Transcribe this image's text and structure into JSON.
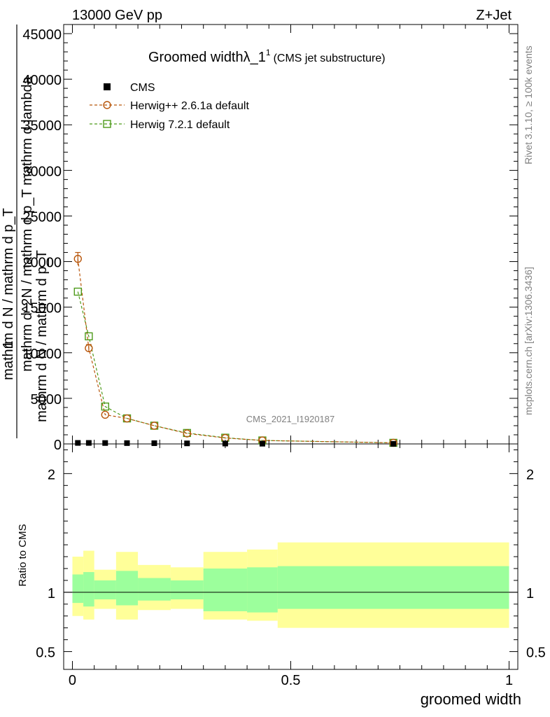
{
  "header": {
    "left": "13000 GeV pp",
    "right": "Z+Jet"
  },
  "side_labels": {
    "rivet": "Rivet 3.1.10, ≥ 100k events",
    "mcplots": "mcplots.cern.ch [arXiv:1306.3436]"
  },
  "watermark": "CMS_2021_I1920187",
  "chart_data": {
    "type": "line",
    "title": "Groomed widthλ_1",
    "title_sup": "1",
    "subtitle": "(CMS jet substructure)",
    "xlabel": "groomed width",
    "ylabel_main": {
      "numerator": "1",
      "denominator": "mathrm d N / mathrm d p_T",
      "expression": "mathrm d^2N / mathrm d p_T mathrm d lambda",
      "side": "mathrm d N / mathrm d p_T"
    },
    "ylabel_ratio": "Ratio to CMS",
    "xlim": [
      -0.02,
      1.02
    ],
    "ylim": [
      0,
      46000
    ],
    "ratio_ylim": [
      0.35,
      2.25
    ],
    "x_ticks": [
      0,
      0.5,
      1
    ],
    "x_tick_labels": [
      "0",
      "0.5",
      "1"
    ],
    "y_ticks": [
      0,
      5000,
      10000,
      15000,
      20000,
      25000,
      30000,
      35000,
      40000,
      45000
    ],
    "y_tick_labels": [
      "0",
      "5000",
      "10000",
      "15000",
      "20000",
      "25000",
      "30000",
      "35000",
      "40000",
      "45000"
    ],
    "ratio_ticks": [
      0.5,
      1,
      2
    ],
    "ratio_tick_labels": [
      "0.5",
      "1",
      "2"
    ],
    "legend": [
      {
        "name": "CMS",
        "marker": "square-filled",
        "color": "#000000"
      },
      {
        "name": "Herwig++ 2.6.1a default",
        "marker": "circle-open",
        "color": "#b8560b"
      },
      {
        "name": "Herwig 7.2.1 default",
        "marker": "square-open",
        "color": "#4d9a1a"
      }
    ],
    "bins": [
      [
        0,
        0.025
      ],
      [
        0.025,
        0.05
      ],
      [
        0.05,
        0.1
      ],
      [
        0.1,
        0.15
      ],
      [
        0.15,
        0.225
      ],
      [
        0.225,
        0.3
      ],
      [
        0.3,
        0.4
      ],
      [
        0.4,
        0.47
      ],
      [
        0.47,
        1.0
      ]
    ],
    "series": [
      {
        "name": "CMS",
        "x": [
          0.0125,
          0.0375,
          0.075,
          0.125,
          0.1875,
          0.2625,
          0.35,
          0.435,
          0.735
        ],
        "values": [
          110,
          110,
          100,
          90,
          80,
          60,
          40,
          25,
          8
        ]
      },
      {
        "name": "Herwig++ 2.6.1a default",
        "x": [
          0.0125,
          0.0375,
          0.075,
          0.125,
          0.1875,
          0.2625,
          0.35,
          0.435,
          0.735
        ],
        "values": [
          20300,
          10500,
          3200,
          2800,
          2000,
          1150,
          650,
          380,
          120
        ],
        "errors": [
          700,
          400,
          0,
          0,
          0,
          0,
          0,
          0,
          0
        ]
      },
      {
        "name": "Herwig 7.2.1 default",
        "x": [
          0.0125,
          0.0375,
          0.075,
          0.125,
          0.1875,
          0.2625,
          0.35,
          0.435,
          0.735
        ],
        "values": [
          16700,
          11800,
          4100,
          2800,
          2000,
          1200,
          680,
          380,
          120
        ]
      }
    ],
    "ratio_band": {
      "inner_lo": [
        0.91,
        0.88,
        0.94,
        0.89,
        0.93,
        0.94,
        0.84,
        0.83,
        0.86
      ],
      "inner_hi": [
        1.15,
        1.17,
        1.1,
        1.18,
        1.12,
        1.1,
        1.2,
        1.21,
        1.22
      ],
      "outer_lo": [
        0.8,
        0.77,
        0.86,
        0.77,
        0.85,
        0.86,
        0.77,
        0.76,
        0.7
      ],
      "outer_hi": [
        1.3,
        1.35,
        1.19,
        1.34,
        1.23,
        1.21,
        1.34,
        1.36,
        1.42
      ],
      "inner_color": "#9cff9c",
      "outer_color": "#ffff99"
    }
  }
}
